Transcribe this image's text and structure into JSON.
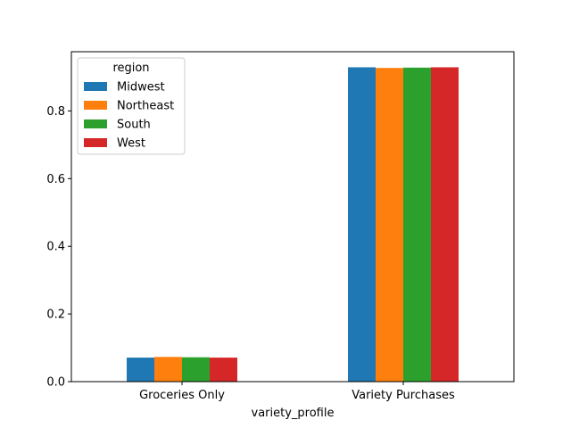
{
  "chart_data": {
    "type": "bar",
    "categories": [
      "Groceries Only",
      "Variety Purchases"
    ],
    "series": [
      {
        "name": "Midwest",
        "values": [
          0.071,
          0.929
        ],
        "color": "#1f77b4"
      },
      {
        "name": "Northeast",
        "values": [
          0.073,
          0.927
        ],
        "color": "#ff7f0e"
      },
      {
        "name": "South",
        "values": [
          0.072,
          0.928
        ],
        "color": "#2ca02c"
      },
      {
        "name": "West",
        "values": [
          0.071,
          0.929
        ],
        "color": "#d62728"
      }
    ],
    "title": "",
    "xlabel": "variety_profile",
    "ylabel": "",
    "ylim": [
      0,
      0.975
    ],
    "yticks": [
      0.0,
      0.2,
      0.4,
      0.6,
      0.8
    ],
    "ytick_labels": [
      "0.0",
      "0.2",
      "0.4",
      "0.6",
      "0.8"
    ],
    "grid": false,
    "legend": {
      "title": "region",
      "placement": "top-left"
    }
  }
}
